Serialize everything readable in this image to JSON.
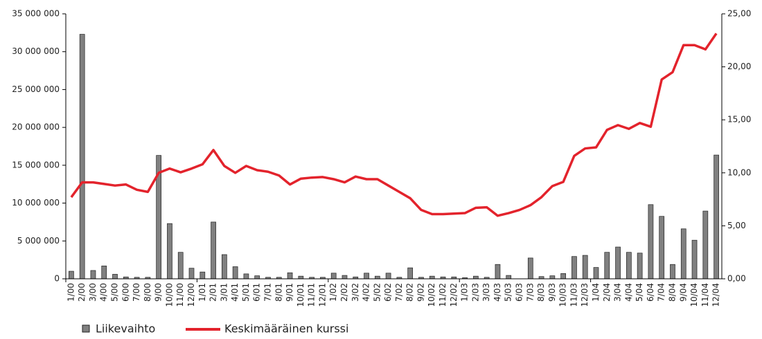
{
  "chart_data": {
    "type": "bar_line",
    "categories": [
      "1/00",
      "2/00",
      "3/00",
      "4/00",
      "5/00",
      "6/00",
      "7/00",
      "8/00",
      "9/00",
      "10/00",
      "11/00",
      "12/00",
      "1/01",
      "2/01",
      "3/01",
      "4/01",
      "5/01",
      "6/01",
      "7/01",
      "8/01",
      "9/01",
      "10/01",
      "11/01",
      "12/01",
      "1/02",
      "2/02",
      "3/02",
      "4/02",
      "5/02",
      "6/02",
      "7/02",
      "8/02",
      "9/02",
      "10/02",
      "11/02",
      "12/02",
      "1/03",
      "2/03",
      "3/03",
      "4/03",
      "5/03",
      "6/03",
      "7/03",
      "8/03",
      "9/03",
      "10/03",
      "11/03",
      "12/03",
      "1/04",
      "2/04",
      "3/04",
      "4/04",
      "5/04",
      "6/04",
      "7/04",
      "8/04",
      "9/04",
      "10/04",
      "11/04",
      "12/04"
    ],
    "series": [
      {
        "name": "Liikevaihto",
        "color": "#808080",
        "type": "bar",
        "axis": "y",
        "values": [
          1000000,
          32300000,
          1100000,
          1700000,
          600000,
          250000,
          200000,
          200000,
          16300000,
          7300000,
          3500000,
          1400000,
          900000,
          7500000,
          3200000,
          1600000,
          650000,
          400000,
          200000,
          200000,
          800000,
          350000,
          200000,
          200000,
          750000,
          450000,
          250000,
          750000,
          350000,
          750000,
          200000,
          1450000,
          200000,
          350000,
          250000,
          250000,
          150000,
          350000,
          200000,
          1900000,
          450000,
          0,
          2750000,
          300000,
          400000,
          700000,
          2950000,
          3100000,
          1500000,
          3500000,
          4200000,
          3500000,
          3400000,
          9800000,
          8250000,
          1900000,
          6600000,
          5100000,
          8950000,
          16350000
        ]
      },
      {
        "name": "Keskimääräinen kurssi",
        "color": "#e3232c",
        "type": "line",
        "axis": "y2",
        "values": [
          7.7,
          9.1,
          9.1,
          8.95,
          8.8,
          8.9,
          8.4,
          8.2,
          10.0,
          10.4,
          10.05,
          10.4,
          10.8,
          12.15,
          10.65,
          10.0,
          10.65,
          10.25,
          10.1,
          9.75,
          8.9,
          9.45,
          9.55,
          9.6,
          9.4,
          9.1,
          9.65,
          9.4,
          9.4,
          8.8,
          8.2,
          7.6,
          6.5,
          6.1,
          6.1,
          6.15,
          6.2,
          6.7,
          6.75,
          5.95,
          6.2,
          6.5,
          6.95,
          7.7,
          8.75,
          9.15,
          11.6,
          12.3,
          12.4,
          14.05,
          14.5,
          14.15,
          14.7,
          14.35,
          18.8,
          19.5,
          22.05,
          22.05,
          21.65,
          23.15
        ]
      }
    ],
    "ylim": [
      0,
      35000000
    ],
    "yticks": [
      {
        "value": 0,
        "label": "0"
      },
      {
        "value": 5000000,
        "label": "5 000 000"
      },
      {
        "value": 10000000,
        "label": "10 000 000"
      },
      {
        "value": 15000000,
        "label": "15 000 000"
      },
      {
        "value": 20000000,
        "label": "20 000 000"
      },
      {
        "value": 25000000,
        "label": "25 000 000"
      },
      {
        "value": 30000000,
        "label": "30 000 000"
      },
      {
        "value": 35000000,
        "label": "35 000 000"
      }
    ],
    "y2lim": [
      0,
      25
    ],
    "y2ticks": [
      {
        "value": 0,
        "label": "0,00"
      },
      {
        "value": 5,
        "label": "5,00"
      },
      {
        "value": 10,
        "label": "10,00"
      },
      {
        "value": 15,
        "label": "15,00"
      },
      {
        "value": 20,
        "label": "20,00"
      },
      {
        "value": 25,
        "label": "25,00"
      }
    ],
    "legend": "bottom-left"
  }
}
